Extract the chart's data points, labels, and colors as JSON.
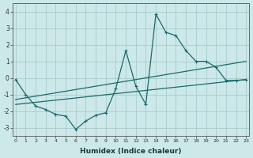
{
  "xlabel": "Humidex (Indice chaleur)",
  "background_color": "#cce8e8",
  "grid_color": "#aacccc",
  "line_color": "#1a6b6b",
  "series1_x": [
    0,
    1,
    2,
    3,
    4,
    5,
    6,
    7,
    8,
    9,
    10,
    11,
    12,
    13,
    14,
    15,
    16,
    17,
    18,
    19,
    20,
    21,
    22,
    23
  ],
  "series1_y": [
    -0.1,
    -1.0,
    -1.7,
    -1.9,
    -2.2,
    -2.3,
    -3.1,
    -2.6,
    -2.25,
    -2.1,
    -0.65,
    1.65,
    -0.5,
    -1.6,
    3.85,
    2.75,
    2.55,
    1.65,
    1.0,
    1.0,
    0.65,
    -0.15,
    -0.15,
    -0.1
  ],
  "line2_x": [
    0,
    23
  ],
  "line2_y": [
    -1.3,
    1.0
  ],
  "line3_x": [
    0,
    23
  ],
  "line3_y": [
    -1.6,
    -0.1
  ],
  "xlim": [
    0,
    23
  ],
  "ylim": [
    -3.5,
    4.5
  ],
  "yticks": [
    -3,
    -2,
    -1,
    0,
    1,
    2,
    3,
    4
  ],
  "xticks": [
    0,
    1,
    2,
    3,
    4,
    5,
    6,
    7,
    8,
    9,
    10,
    11,
    12,
    13,
    14,
    15,
    16,
    17,
    18,
    19,
    20,
    21,
    22,
    23
  ]
}
